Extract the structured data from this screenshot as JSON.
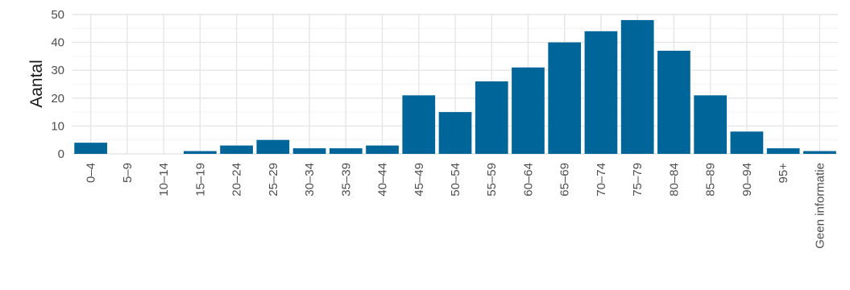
{
  "chart_data": {
    "type": "bar",
    "title": "",
    "xlabel": "",
    "ylabel": "Aantal",
    "ylim": [
      0,
      50
    ],
    "yticks": [
      0,
      10,
      20,
      30,
      40,
      50
    ],
    "grid": true,
    "legend": "none",
    "bar_color": "#006699",
    "categories": [
      "0–4",
      "5–9",
      "10–14",
      "15–19",
      "20–24",
      "25–29",
      "30–34",
      "35–39",
      "40–44",
      "45–49",
      "50–54",
      "55–59",
      "60–64",
      "65–69",
      "70–74",
      "75–79",
      "80–84",
      "85–89",
      "90–94",
      "95+",
      "Geen informatie"
    ],
    "values": [
      4,
      0,
      0,
      1,
      3,
      5,
      2,
      2,
      3,
      21,
      15,
      26,
      31,
      40,
      44,
      48,
      37,
      21,
      8,
      2,
      1
    ]
  }
}
